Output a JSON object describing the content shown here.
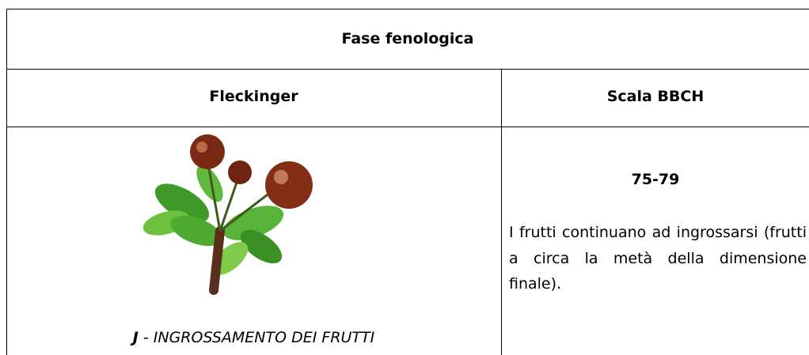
{
  "table": {
    "title": "Fase fenologica",
    "headers": [
      "Fleckinger",
      "Scala BBCH"
    ],
    "rows": [
      {
        "caption": [
          "J",
          " - INGROSSAMENTO DEI FRUTTI"
        ],
        "bbch_code": "75-79",
        "description": "I frutti continuano ad ingrossarsi (frutti a circa la metà della dimensione finale)."
      }
    ]
  }
}
